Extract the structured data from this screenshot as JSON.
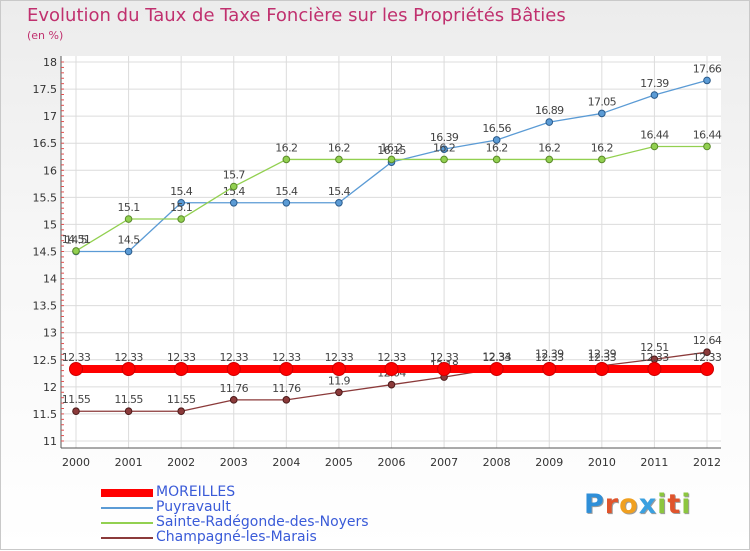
{
  "header": {
    "title": "Evolution du Taux de Taxe Foncière sur les Propriétés Bâties",
    "unit": "(en %)"
  },
  "logo": {
    "letters": [
      "P",
      "r",
      "o",
      "x",
      "i",
      "t",
      "i"
    ],
    "colors": [
      "#2f8fd8",
      "#e0542c",
      "#f0a020",
      "#3aa0e0",
      "#8cc63f",
      "#e0542c",
      "#8cc63f"
    ]
  },
  "chart_data": {
    "type": "line",
    "title": "Evolution du Taux de Taxe Foncière sur les Propriétés Bâties",
    "ylabel": "(en %)",
    "xlabel": "",
    "ylim": [
      11,
      18
    ],
    "y_ticks": [
      "11",
      "11.5",
      "12",
      "12.5",
      "13",
      "13.5",
      "14",
      "14.5",
      "15",
      "15.5",
      "16",
      "16.5",
      "17",
      "17.5",
      "18"
    ],
    "categories": [
      "2000",
      "2001",
      "2002",
      "2003",
      "2004",
      "2005",
      "2006",
      "2007",
      "2008",
      "2009",
      "2010",
      "2011",
      "2012"
    ],
    "series": [
      {
        "name": "Puyravault",
        "color": "#5b9bd5",
        "values": [
          14.5,
          14.5,
          15.4,
          15.4,
          15.4,
          15.4,
          16.15,
          16.39,
          16.56,
          16.89,
          17.05,
          17.39,
          17.66
        ],
        "labels": [
          "14.5",
          "14.5",
          "15.4",
          "15.4",
          "15.4",
          "15.4",
          "16.15",
          "16.39",
          "16.56",
          "16.89",
          "17.05",
          "17.39",
          "17.66"
        ]
      },
      {
        "name": "Sainte-Radégonde-des-Noyers",
        "color": "#92d050",
        "values": [
          14.51,
          15.1,
          15.1,
          15.7,
          16.2,
          16.2,
          16.2,
          16.2,
          16.2,
          16.2,
          16.2,
          16.44,
          16.44
        ],
        "labels": [
          "14.51",
          "15.1",
          "15.1",
          "15.7",
          "16.2",
          "16.2",
          "16.2",
          "16.2",
          "16.2",
          "16.2",
          "16.2",
          "16.44",
          "16.44"
        ]
      },
      {
        "name": "Champagné-les-Marais",
        "color": "#8b3a3a",
        "values": [
          11.55,
          11.55,
          11.55,
          11.76,
          11.76,
          11.9,
          12.04,
          12.18,
          12.34,
          12.39,
          12.39,
          12.51,
          12.64
        ],
        "labels": [
          "11.55",
          "11.55",
          "11.55",
          "11.76",
          "11.76",
          "11.9",
          "12.04",
          "12.18",
          "12.34",
          "12.39",
          "12.39",
          "12.51",
          "12.64"
        ]
      },
      {
        "name": "MOREILLES",
        "color": "#ff0000",
        "values": [
          12.33,
          12.33,
          12.33,
          12.33,
          12.33,
          12.33,
          12.33,
          12.33,
          12.33,
          12.33,
          12.33,
          12.33,
          12.33
        ],
        "labels": [
          "12.33",
          "12.33",
          "12.33",
          "12.33",
          "12.33",
          "12.33",
          "12.33",
          "12.33",
          "12.33",
          "12.33",
          "12.33",
          "12.33",
          "12.33"
        ]
      }
    ],
    "legend": {
      "position": "bottom-left",
      "items": [
        {
          "name": "MOREILLES",
          "color": "#ff0000"
        },
        {
          "name": "Puyravault",
          "color": "#5b9bd5"
        },
        {
          "name": "Sainte-Radégonde-des-Noyers",
          "color": "#92d050"
        },
        {
          "name": "Champagné-les-Marais",
          "color": "#8b3a3a"
        }
      ]
    }
  }
}
